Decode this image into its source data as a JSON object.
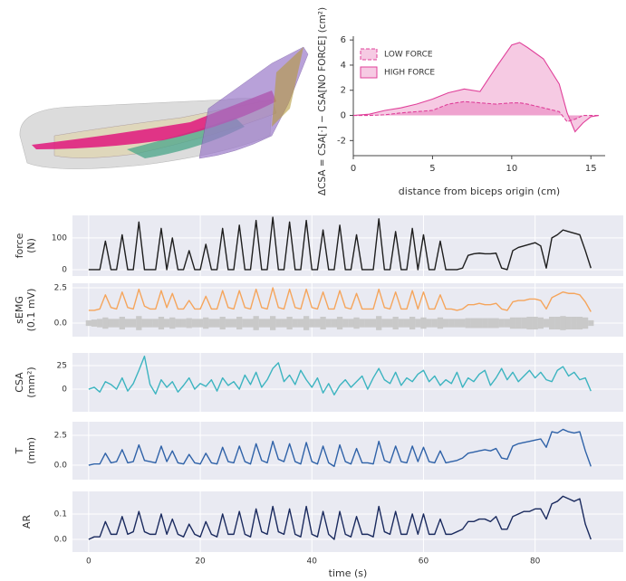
{
  "chart_data": [
    {
      "type": "area",
      "ylabel": "ΔCSA = CSA[·] − CSA[NO FORCE] (cm²)",
      "xlabel": "distance from biceps origin (cm)",
      "x": [
        0,
        1,
        2,
        3,
        4,
        5,
        6,
        7,
        8,
        9,
        10,
        10.5,
        11,
        12,
        13,
        13.5,
        14,
        14.5,
        15,
        15.5
      ],
      "xlim": [
        0,
        15.9
      ],
      "xticks": [
        0,
        5,
        10,
        15
      ],
      "ylim": [
        -3.2,
        6.3
      ],
      "yticks": [
        -2,
        0,
        2,
        4,
        6
      ],
      "legend": "upper left",
      "series": [
        {
          "name": "LOW FORCE",
          "color": "#e0409a",
          "linestyle": "dashed",
          "values": [
            0,
            0,
            0.05,
            0.2,
            0.3,
            0.4,
            0.9,
            1.1,
            1.0,
            0.9,
            1.0,
            1.0,
            0.9,
            0.6,
            0.3,
            -0.5,
            -0.3,
            0,
            0,
            0
          ]
        },
        {
          "name": "HIGH FORCE",
          "color": "#e0409a",
          "linestyle": "solid",
          "values": [
            0,
            0.1,
            0.4,
            0.6,
            0.9,
            1.3,
            1.8,
            2.1,
            1.9,
            3.8,
            5.6,
            5.8,
            5.4,
            4.5,
            2.5,
            0.2,
            -1.3,
            -0.6,
            -0.1,
            0
          ]
        }
      ]
    },
    {
      "type": "panels",
      "xlabel": "time (s)",
      "x": [
        0,
        1,
        2,
        3,
        4,
        5,
        6,
        7,
        8,
        9,
        10,
        11,
        12,
        13,
        14,
        15,
        16,
        17,
        18,
        19,
        20,
        21,
        22,
        23,
        24,
        25,
        26,
        27,
        28,
        29,
        30,
        31,
        32,
        33,
        34,
        35,
        36,
        37,
        38,
        39,
        40,
        41,
        42,
        43,
        44,
        45,
        46,
        47,
        48,
        49,
        50,
        51,
        52,
        53,
        54,
        55,
        56,
        57,
        58,
        59,
        60,
        61,
        62,
        63,
        64,
        65,
        66,
        67,
        68,
        69,
        70,
        71,
        72,
        73,
        74,
        75,
        76,
        77,
        78,
        79,
        80,
        81,
        82,
        83,
        84,
        85,
        86,
        87,
        88,
        89,
        90
      ],
      "xlim": [
        -2.9,
        95.8
      ],
      "xticks": [
        0,
        20,
        40,
        60,
        80
      ],
      "grid": true,
      "panels": [
        {
          "ylabel": [
            "force",
            "(N)"
          ],
          "ylim": [
            -20,
            171
          ],
          "yticks": [
            0,
            100
          ],
          "series": [
            {
              "color": "#1e1e1e",
              "values": [
                0,
                0,
                0,
                90,
                0,
                0,
                110,
                0,
                0,
                150,
                0,
                0,
                0,
                130,
                0,
                100,
                0,
                0,
                60,
                0,
                0,
                80,
                0,
                0,
                130,
                0,
                0,
                140,
                0,
                0,
                155,
                0,
                0,
                165,
                0,
                0,
                150,
                0,
                0,
                155,
                0,
                0,
                125,
                0,
                0,
                140,
                0,
                0,
                110,
                0,
                0,
                0,
                160,
                0,
                0,
                120,
                0,
                0,
                130,
                0,
                110,
                0,
                0,
                90,
                0,
                0,
                0,
                5,
                45,
                50,
                52,
                50,
                50,
                52,
                5,
                0,
                60,
                70,
                75,
                80,
                85,
                75,
                5,
                100,
                110,
                125,
                120,
                115,
                110,
                60,
                5
              ]
            }
          ]
        },
        {
          "ylabel": [
            "sEMG",
            "(0.1 mV)"
          ],
          "ylim": [
            -0.96,
            2.82
          ],
          "yticks": [
            {
              "value": 0,
              "label": "0.0"
            },
            2.5
          ],
          "series": [
            {
              "color": "#c9c9c9",
              "band": true,
              "values": [
                0.2,
                0.25,
                0.3,
                0.4,
                0.3,
                0.3,
                0.45,
                0.3,
                0.3,
                0.5,
                0.3,
                0.3,
                0.3,
                0.45,
                0.3,
                0.4,
                0.3,
                0.3,
                0.35,
                0.3,
                0.3,
                0.4,
                0.3,
                0.3,
                0.45,
                0.3,
                0.3,
                0.45,
                0.3,
                0.3,
                0.5,
                0.3,
                0.3,
                0.5,
                0.3,
                0.3,
                0.45,
                0.3,
                0.3,
                0.5,
                0.3,
                0.3,
                0.45,
                0.3,
                0.3,
                0.45,
                0.3,
                0.3,
                0.4,
                0.3,
                0.3,
                0.3,
                0.5,
                0.3,
                0.3,
                0.45,
                0.3,
                0.3,
                0.45,
                0.3,
                0.4,
                0.3,
                0.3,
                0.4,
                0.3,
                0.3,
                0.3,
                0.3,
                0.35,
                0.35,
                0.35,
                0.35,
                0.35,
                0.35,
                0.3,
                0.3,
                0.4,
                0.4,
                0.4,
                0.45,
                0.45,
                0.4,
                0.3,
                0.45,
                0.45,
                0.5,
                0.45,
                0.45,
                0.45,
                0.4,
                0.2
              ]
            },
            {
              "color": "#f5a55c",
              "values": [
                0.9,
                0.9,
                1.0,
                2.0,
                1.1,
                1.0,
                2.2,
                1.1,
                1.0,
                2.4,
                1.2,
                1.0,
                1.0,
                2.3,
                1.1,
                2.1,
                1.0,
                1.0,
                1.6,
                1.0,
                1.0,
                1.9,
                1.0,
                1.0,
                2.3,
                1.1,
                1.0,
                2.3,
                1.1,
                1.0,
                2.4,
                1.1,
                1.0,
                2.5,
                1.1,
                1.0,
                2.4,
                1.1,
                1.0,
                2.4,
                1.1,
                1.0,
                2.2,
                1.0,
                1.0,
                2.3,
                1.1,
                1.0,
                2.1,
                1.0,
                1.0,
                1.0,
                2.4,
                1.1,
                1.0,
                2.2,
                1.0,
                1.0,
                2.3,
                1.0,
                2.2,
                1.0,
                1.0,
                2.0,
                1.0,
                1.0,
                0.9,
                1.0,
                1.3,
                1.3,
                1.4,
                1.3,
                1.3,
                1.4,
                1.0,
                0.9,
                1.5,
                1.6,
                1.6,
                1.7,
                1.7,
                1.6,
                1.0,
                1.8,
                2.0,
                2.2,
                2.1,
                2.1,
                2.0,
                1.5,
                0.8
              ]
            }
          ]
        },
        {
          "ylabel": [
            "CSA",
            "(mm²)"
          ],
          "ylim": [
            -24,
            38.5
          ],
          "yticks": [
            0,
            25
          ],
          "series": [
            {
              "color": "#3cb4c0",
              "values": [
                0,
                2,
                -3,
                8,
                5,
                0,
                12,
                -2,
                6,
                20,
                35,
                5,
                -5,
                10,
                2,
                8,
                -3,
                4,
                12,
                0,
                6,
                3,
                10,
                -2,
                12,
                4,
                8,
                0,
                15,
                5,
                18,
                2,
                10,
                22,
                28,
                8,
                15,
                5,
                20,
                10,
                2,
                12,
                -4,
                6,
                -6,
                4,
                10,
                2,
                8,
                14,
                0,
                12,
                22,
                10,
                6,
                18,
                4,
                12,
                8,
                16,
                20,
                8,
                14,
                4,
                10,
                6,
                18,
                2,
                12,
                8,
                16,
                20,
                4,
                12,
                22,
                10,
                18,
                8,
                14,
                20,
                12,
                18,
                10,
                8,
                20,
                24,
                14,
                18,
                10,
                12,
                -2
              ]
            }
          ]
        },
        {
          "ylabel": [
            "T",
            "(mm)"
          ],
          "ylim": [
            -1.21,
            3.64
          ],
          "yticks": [
            {
              "value": 0,
              "label": "0.0"
            },
            2.5
          ],
          "series": [
            {
              "color": "#2f62a8",
              "values": [
                0,
                0.1,
                0.1,
                1.0,
                0.2,
                0.3,
                1.3,
                0.2,
                0.3,
                1.7,
                0.4,
                0.3,
                0.2,
                1.6,
                0.3,
                1.2,
                0.2,
                0.1,
                0.9,
                0.2,
                0.1,
                1.0,
                0.2,
                0.1,
                1.5,
                0.3,
                0.2,
                1.6,
                0.3,
                0.1,
                1.8,
                0.4,
                0.2,
                2.0,
                0.5,
                0.3,
                1.8,
                0.3,
                0.1,
                1.9,
                0.3,
                0.1,
                1.6,
                0.2,
                -0.1,
                1.7,
                0.3,
                0.1,
                1.4,
                0.2,
                0.2,
                0.1,
                2.0,
                0.4,
                0.2,
                1.6,
                0.3,
                0.2,
                1.6,
                0.3,
                1.5,
                0.3,
                0.2,
                1.2,
                0.2,
                0.3,
                0.4,
                0.6,
                1.0,
                1.1,
                1.2,
                1.3,
                1.2,
                1.4,
                0.6,
                0.5,
                1.6,
                1.8,
                1.9,
                2.0,
                2.1,
                2.2,
                1.5,
                2.8,
                2.7,
                3.0,
                2.8,
                2.7,
                2.8,
                1.2,
                -0.1
              ]
            }
          ]
        },
        {
          "ylabel": [
            "AR"
          ],
          "ylim": [
            -0.05,
            0.189
          ],
          "yticks": [
            {
              "value": 0,
              "label": "0.0"
            },
            0.1
          ],
          "series": [
            {
              "color": "#1a2a5e",
              "values": [
                0,
                0.01,
                0.01,
                0.07,
                0.02,
                0.02,
                0.09,
                0.02,
                0.03,
                0.11,
                0.03,
                0.02,
                0.02,
                0.1,
                0.02,
                0.08,
                0.02,
                0.01,
                0.06,
                0.02,
                0.01,
                0.07,
                0.02,
                0.01,
                0.1,
                0.02,
                0.02,
                0.11,
                0.02,
                0.01,
                0.12,
                0.03,
                0.02,
                0.13,
                0.03,
                0.02,
                0.12,
                0.02,
                0.01,
                0.13,
                0.02,
                0.01,
                0.11,
                0.02,
                0,
                0.11,
                0.02,
                0.01,
                0.09,
                0.02,
                0.02,
                0.01,
                0.13,
                0.03,
                0.02,
                0.11,
                0.02,
                0.02,
                0.1,
                0.02,
                0.1,
                0.02,
                0.02,
                0.08,
                0.02,
                0.02,
                0.03,
                0.04,
                0.07,
                0.07,
                0.08,
                0.08,
                0.07,
                0.09,
                0.04,
                0.04,
                0.09,
                0.1,
                0.11,
                0.11,
                0.12,
                0.12,
                0.08,
                0.14,
                0.15,
                0.17,
                0.16,
                0.15,
                0.16,
                0.06,
                0
              ]
            }
          ]
        }
      ]
    }
  ]
}
